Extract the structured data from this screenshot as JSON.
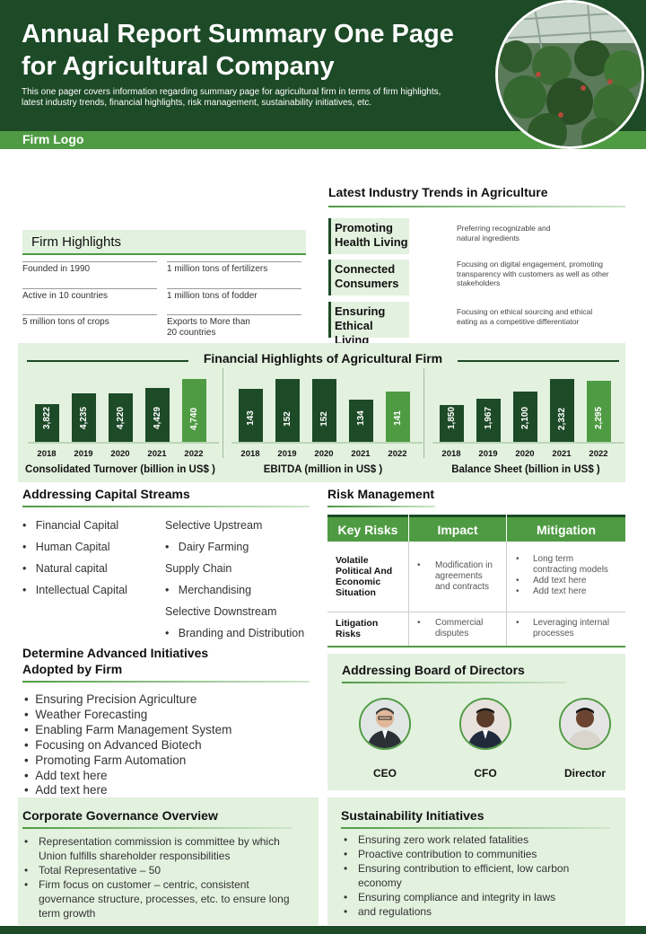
{
  "header": {
    "title_line1": "Annual Report Summary One Page",
    "title_line2": "for Agricultural Company",
    "subtitle_line1": "This one pager covers information regarding summary page for agricultural firm in terms of firm highlights,",
    "subtitle_line2": "latest industry trends, financial highlights, risk management,  sustainability initiatives, etc.",
    "logo": "Firm Logo"
  },
  "trends": {
    "title": "Latest Industry Trends in Agriculture",
    "items": [
      {
        "l1": "Promoting",
        "l2": "Health Living",
        "d1": "Preferring recognizable and",
        "d2": "natural ingredients",
        "d3": ""
      },
      {
        "l1": "Connected",
        "l2": "Consumers",
        "d1": "Focusing on digital engagement, promoting",
        "d2": "transparency with customers as well as other",
        "d3": "stakeholders"
      },
      {
        "l1": "Ensuring",
        "l2": "Ethical Living",
        "d1": "Focusing on ethical sourcing and ethical",
        "d2": "eating as a competitive differentiator",
        "d3": ""
      }
    ]
  },
  "firm_highlights": {
    "title": "Firm Highlights",
    "items": [
      {
        "l1": "Founded in 1990",
        "l2": ""
      },
      {
        "l1": "1 million  tons of fertilizers",
        "l2": ""
      },
      {
        "l1": "Active in 10 countries",
        "l2": ""
      },
      {
        "l1": "1 million  tons of fodder",
        "l2": ""
      },
      {
        "l1": "5 million  tons of crops",
        "l2": ""
      },
      {
        "l1": "Exports to More than",
        "l2": "20 countries"
      }
    ]
  },
  "financial": {
    "title": "Financial Highlights of Agricultural Firm"
  },
  "chart_data": [
    {
      "type": "bar",
      "categories": [
        "2018",
        "2019",
        "2020",
        "2021",
        "2022"
      ],
      "values": [
        3822,
        4235,
        4220,
        4429,
        4740
      ],
      "labels": [
        "3,822",
        "4,235",
        "4,220",
        "4,429",
        "4,740"
      ],
      "title": "Consolidated Turnover (billion in US$ )",
      "highlight": "2022"
    },
    {
      "type": "bar",
      "categories": [
        "2018",
        "2019",
        "2020",
        "2021",
        "2022"
      ],
      "values": [
        143,
        152,
        152,
        134,
        141
      ],
      "labels": [
        "143",
        "152",
        "152",
        "134",
        "141"
      ],
      "title": "EBITDA  (million in US$ )",
      "highlight": "2022"
    },
    {
      "type": "bar",
      "categories": [
        "2018",
        "2019",
        "2020",
        "2021",
        "2022"
      ],
      "values": [
        1850,
        1967,
        2100,
        2332,
        2295
      ],
      "labels": [
        "1,850",
        "1,967",
        "2,100",
        "2,332",
        "2,295"
      ],
      "title": "Balance Sheet (billion in US$ )",
      "highlight": "2022"
    }
  ],
  "capital": {
    "title": "Addressing Capital Streams",
    "col1": [
      "Financial Capital",
      "Human Capital",
      "Natural capital",
      "Intellectual Capital"
    ],
    "col2": [
      "Selective Upstream",
      "Dairy Farming",
      "Supply Chain",
      "Merchandising",
      "Selective Downstream",
      "Branding and Distribution"
    ]
  },
  "risk": {
    "title": "Risk Management",
    "headers": [
      "Key Risks",
      "Impact",
      "Mitigation"
    ],
    "rows": [
      {
        "risk": [
          "Volatile",
          "Political And",
          "Economic",
          "Situation"
        ],
        "impact": [
          "Modification in",
          "agreements",
          "and contracts"
        ],
        "mitigation": [
          [
            "Long term",
            "contracting models"
          ],
          [
            "Add text here"
          ],
          [
            "Add text here"
          ]
        ]
      },
      {
        "risk": [
          "Litigation",
          "Risks"
        ],
        "impact": [
          "Commercial",
          "disputes"
        ],
        "mitigation": [
          [
            "Leveraging internal",
            "processes"
          ]
        ]
      }
    ]
  },
  "initiatives": {
    "title_l1": "Determine Advanced Initiatives",
    "title_l2": "Adopted by Firm",
    "items": [
      "Ensuring Precision Agriculture",
      "Weather Forecasting",
      "Enabling Farm Management System",
      "Focusing on Advanced Biotech",
      "Promoting Farm Automation",
      "Add text here",
      "Add text here"
    ]
  },
  "board": {
    "title": "Addressing Board of Directors",
    "members": [
      "CEO",
      "CFO",
      "Director"
    ]
  },
  "governance": {
    "title": "Corporate Governance Overview",
    "items": [
      [
        "Representation  commission is committee by which",
        "Union fulfills shareholder  responsibilities"
      ],
      [
        "Total Representative  – 50"
      ],
      [
        "Firm focus on customer – centric, consistent",
        "governance  structure, processes, etc. to ensure long",
        "term growth"
      ]
    ]
  },
  "sustainability": {
    "title": "Sustainability Initiatives",
    "items": [
      [
        "Ensuring zero work related fatalities"
      ],
      [
        "Proactive contribution to communities"
      ],
      [
        "Ensuring contribution to efficient,  low carbon",
        "economy"
      ],
      [
        "Ensuring compliance and integrity in laws"
      ],
      [
        "and regulations"
      ]
    ]
  },
  "colors": {
    "dark_green": "#1d4a27",
    "accent_green": "#4f9b43",
    "panel_green": "#e3f1df"
  }
}
